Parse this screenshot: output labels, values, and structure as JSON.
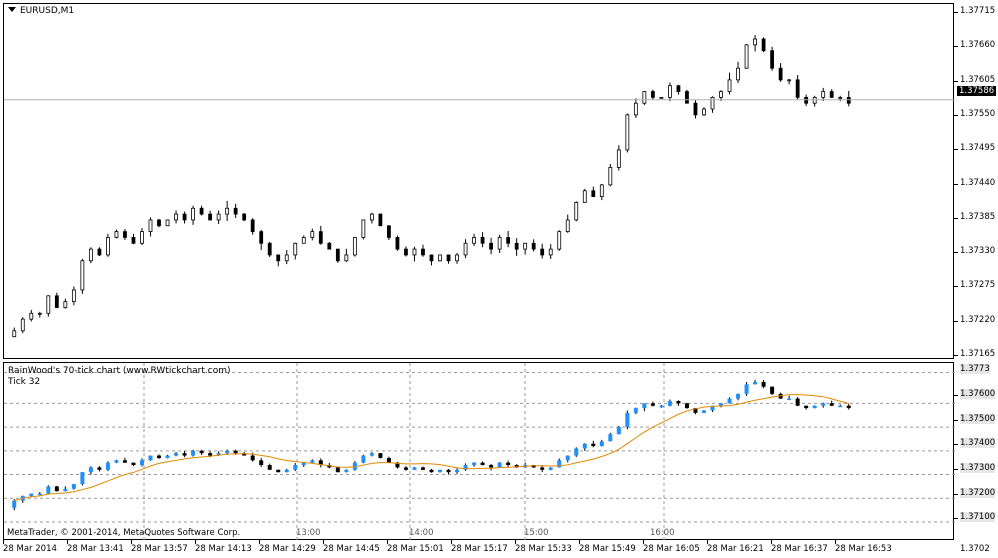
{
  "main_chart": {
    "symbol_label": "EURUSD,M1",
    "current_price": "1.37586",
    "y_labels": [
      "1.37715",
      "1.37660",
      "1.37605",
      "1.37550",
      "1.37495",
      "1.37440",
      "1.37385",
      "1.37330",
      "1.37275",
      "1.37220",
      "1.37165"
    ]
  },
  "sub_chart": {
    "title": "RainWood's 70-tick chart  (www.RWtickchart.com)",
    "subtitle": "Tick 32",
    "current_price": "1.3773",
    "y_labels": [
      "1.37600",
      "1.37500",
      "1.37400",
      "1.37300",
      "1.37200",
      "1.37100",
      "1.3702"
    ],
    "hour_labels": [
      "13:00",
      "14:00",
      "15:00",
      "16:00"
    ],
    "copyright": "MetaTrader, © 2001-2014, MetaQuotes Software Corp."
  },
  "x_labels": [
    "28 Mar 2014",
    "28 Mar 13:41",
    "28 Mar 13:57",
    "28 Mar 14:13",
    "28 Mar 14:29",
    "28 Mar 14:45",
    "28 Mar 15:01",
    "28 Mar 15:17",
    "28 Mar 15:33",
    "28 Mar 15:49",
    "28 Mar 16:05",
    "28 Mar 16:21",
    "28 Mar 16:37",
    "28 Mar 16:53"
  ],
  "colors": {
    "bull_candle": "#1e90ff",
    "bear_candle": "#000000",
    "ma_line": "#e08a00",
    "grid": "#9a9a9a"
  },
  "chart_data": [
    {
      "type": "candlestick",
      "title": "EURUSD,M1",
      "ylim": [
        1.3714,
        1.3775
      ],
      "close_series": [
        1.3719,
        1.3721,
        1.3722,
        1.3722,
        1.3725,
        1.3723,
        1.3724,
        1.3726,
        1.3731,
        1.3733,
        1.3732,
        1.3735,
        1.3736,
        1.3735,
        1.3734,
        1.3736,
        1.3738,
        1.3737,
        1.3738,
        1.3739,
        1.3738,
        1.374,
        1.3739,
        1.3738,
        1.3739,
        1.374,
        1.3739,
        1.3738,
        1.3736,
        1.3734,
        1.3732,
        1.3731,
        1.3732,
        1.3734,
        1.3735,
        1.3736,
        1.3734,
        1.3733,
        1.3731,
        1.3732,
        1.3735,
        1.3738,
        1.3739,
        1.3737,
        1.3735,
        1.3733,
        1.3732,
        1.3733,
        1.3732,
        1.3731,
        1.3732,
        1.3731,
        1.3732,
        1.3734,
        1.3735,
        1.3734,
        1.3733,
        1.3735,
        1.3734,
        1.3733,
        1.3734,
        1.3733,
        1.3732,
        1.3733,
        1.3736,
        1.3738,
        1.3741,
        1.3743,
        1.3742,
        1.3744,
        1.3747,
        1.375,
        1.3756,
        1.3758,
        1.376,
        1.3759,
        1.3759,
        1.3761,
        1.376,
        1.3758,
        1.3756,
        1.3757,
        1.3759,
        1.376,
        1.3762,
        1.3764,
        1.3768,
        1.3769,
        1.3767,
        1.3764,
        1.3762,
        1.3762,
        1.3759,
        1.3758,
        1.3759,
        1.376,
        1.3759,
        1.3759,
        1.3758
      ]
    },
    {
      "type": "candlestick",
      "title": "RainWood's 70-tick chart  (www.RWtickchart.com)",
      "ylim": [
        1.3702,
        1.3777
      ],
      "series": [
        {
          "name": "Tick 32"
        }
      ]
    }
  ]
}
